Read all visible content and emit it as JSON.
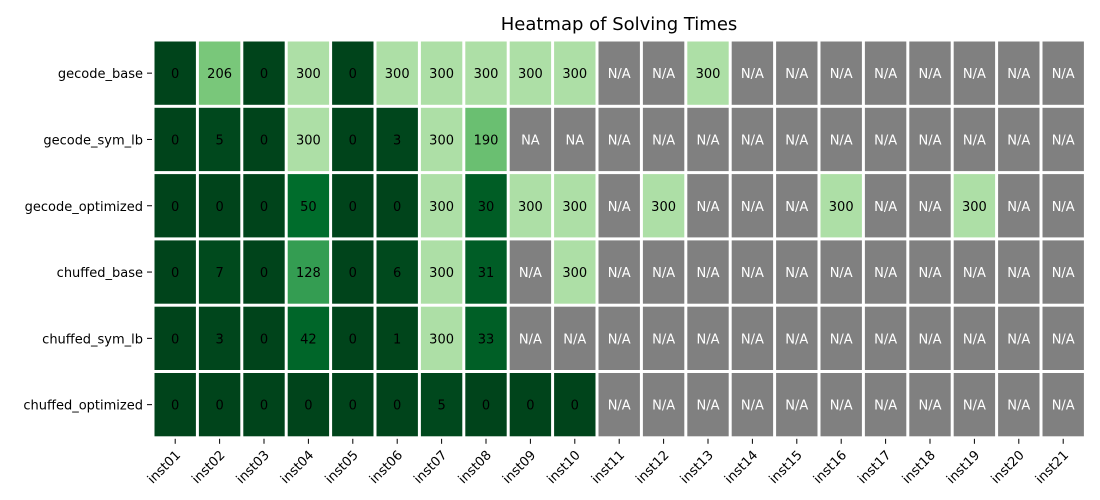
{
  "chart_data": {
    "type": "heatmap",
    "title": "Heatmap of Solving Times",
    "xlabel": "",
    "ylabel": "",
    "rows": [
      "gecode_base",
      "gecode_sym_lb",
      "gecode_optimized",
      "chuffed_base",
      "chuffed_sym_lb",
      "chuffed_optimized"
    ],
    "columns": [
      "inst01",
      "inst02",
      "inst03",
      "inst04",
      "inst05",
      "inst06",
      "inst07",
      "inst08",
      "inst09",
      "inst10",
      "inst11",
      "inst12",
      "inst13",
      "inst14",
      "inst15",
      "inst16",
      "inst17",
      "inst18",
      "inst19",
      "inst20",
      "inst21"
    ],
    "cells": [
      [
        "0",
        "206",
        "0",
        "300",
        "0",
        "300",
        "300",
        "300",
        "300",
        "300",
        "N/A",
        "N/A",
        "300",
        "N/A",
        "N/A",
        "N/A",
        "N/A",
        "N/A",
        "N/A",
        "N/A",
        "N/A"
      ],
      [
        "0",
        "5",
        "0",
        "300",
        "0",
        "3",
        "300",
        "190",
        "NA",
        "NA",
        "N/A",
        "N/A",
        "N/A",
        "N/A",
        "N/A",
        "N/A",
        "N/A",
        "N/A",
        "N/A",
        "N/A",
        "N/A"
      ],
      [
        "0",
        "0",
        "0",
        "50",
        "0",
        "0",
        "300",
        "30",
        "300",
        "300",
        "N/A",
        "300",
        "N/A",
        "N/A",
        "N/A",
        "300",
        "N/A",
        "N/A",
        "300",
        "N/A",
        "N/A"
      ],
      [
        "0",
        "7",
        "0",
        "128",
        "0",
        "6",
        "300",
        "31",
        "N/A",
        "300",
        "N/A",
        "N/A",
        "N/A",
        "N/A",
        "N/A",
        "N/A",
        "N/A",
        "N/A",
        "N/A",
        "N/A",
        "N/A"
      ],
      [
        "0",
        "3",
        "0",
        "42",
        "0",
        "1",
        "300",
        "33",
        "N/A",
        "N/A",
        "N/A",
        "N/A",
        "N/A",
        "N/A",
        "N/A",
        "N/A",
        "N/A",
        "N/A",
        "N/A",
        "N/A",
        "N/A"
      ],
      [
        "0",
        "0",
        "0",
        "0",
        "0",
        "0",
        "5",
        "0",
        "0",
        "0",
        "N/A",
        "N/A",
        "N/A",
        "N/A",
        "N/A",
        "N/A",
        "N/A",
        "N/A",
        "N/A",
        "N/A",
        "N/A"
      ]
    ],
    "value_range": [
      0,
      300
    ],
    "colors": {
      "missing": "#808080",
      "scale": [
        "#00441b",
        "#006d2c",
        "#238b45",
        "#41ab5d",
        "#74c476",
        "#a1d99b",
        "#addfa6"
      ]
    },
    "grid": false,
    "legend": "none"
  }
}
